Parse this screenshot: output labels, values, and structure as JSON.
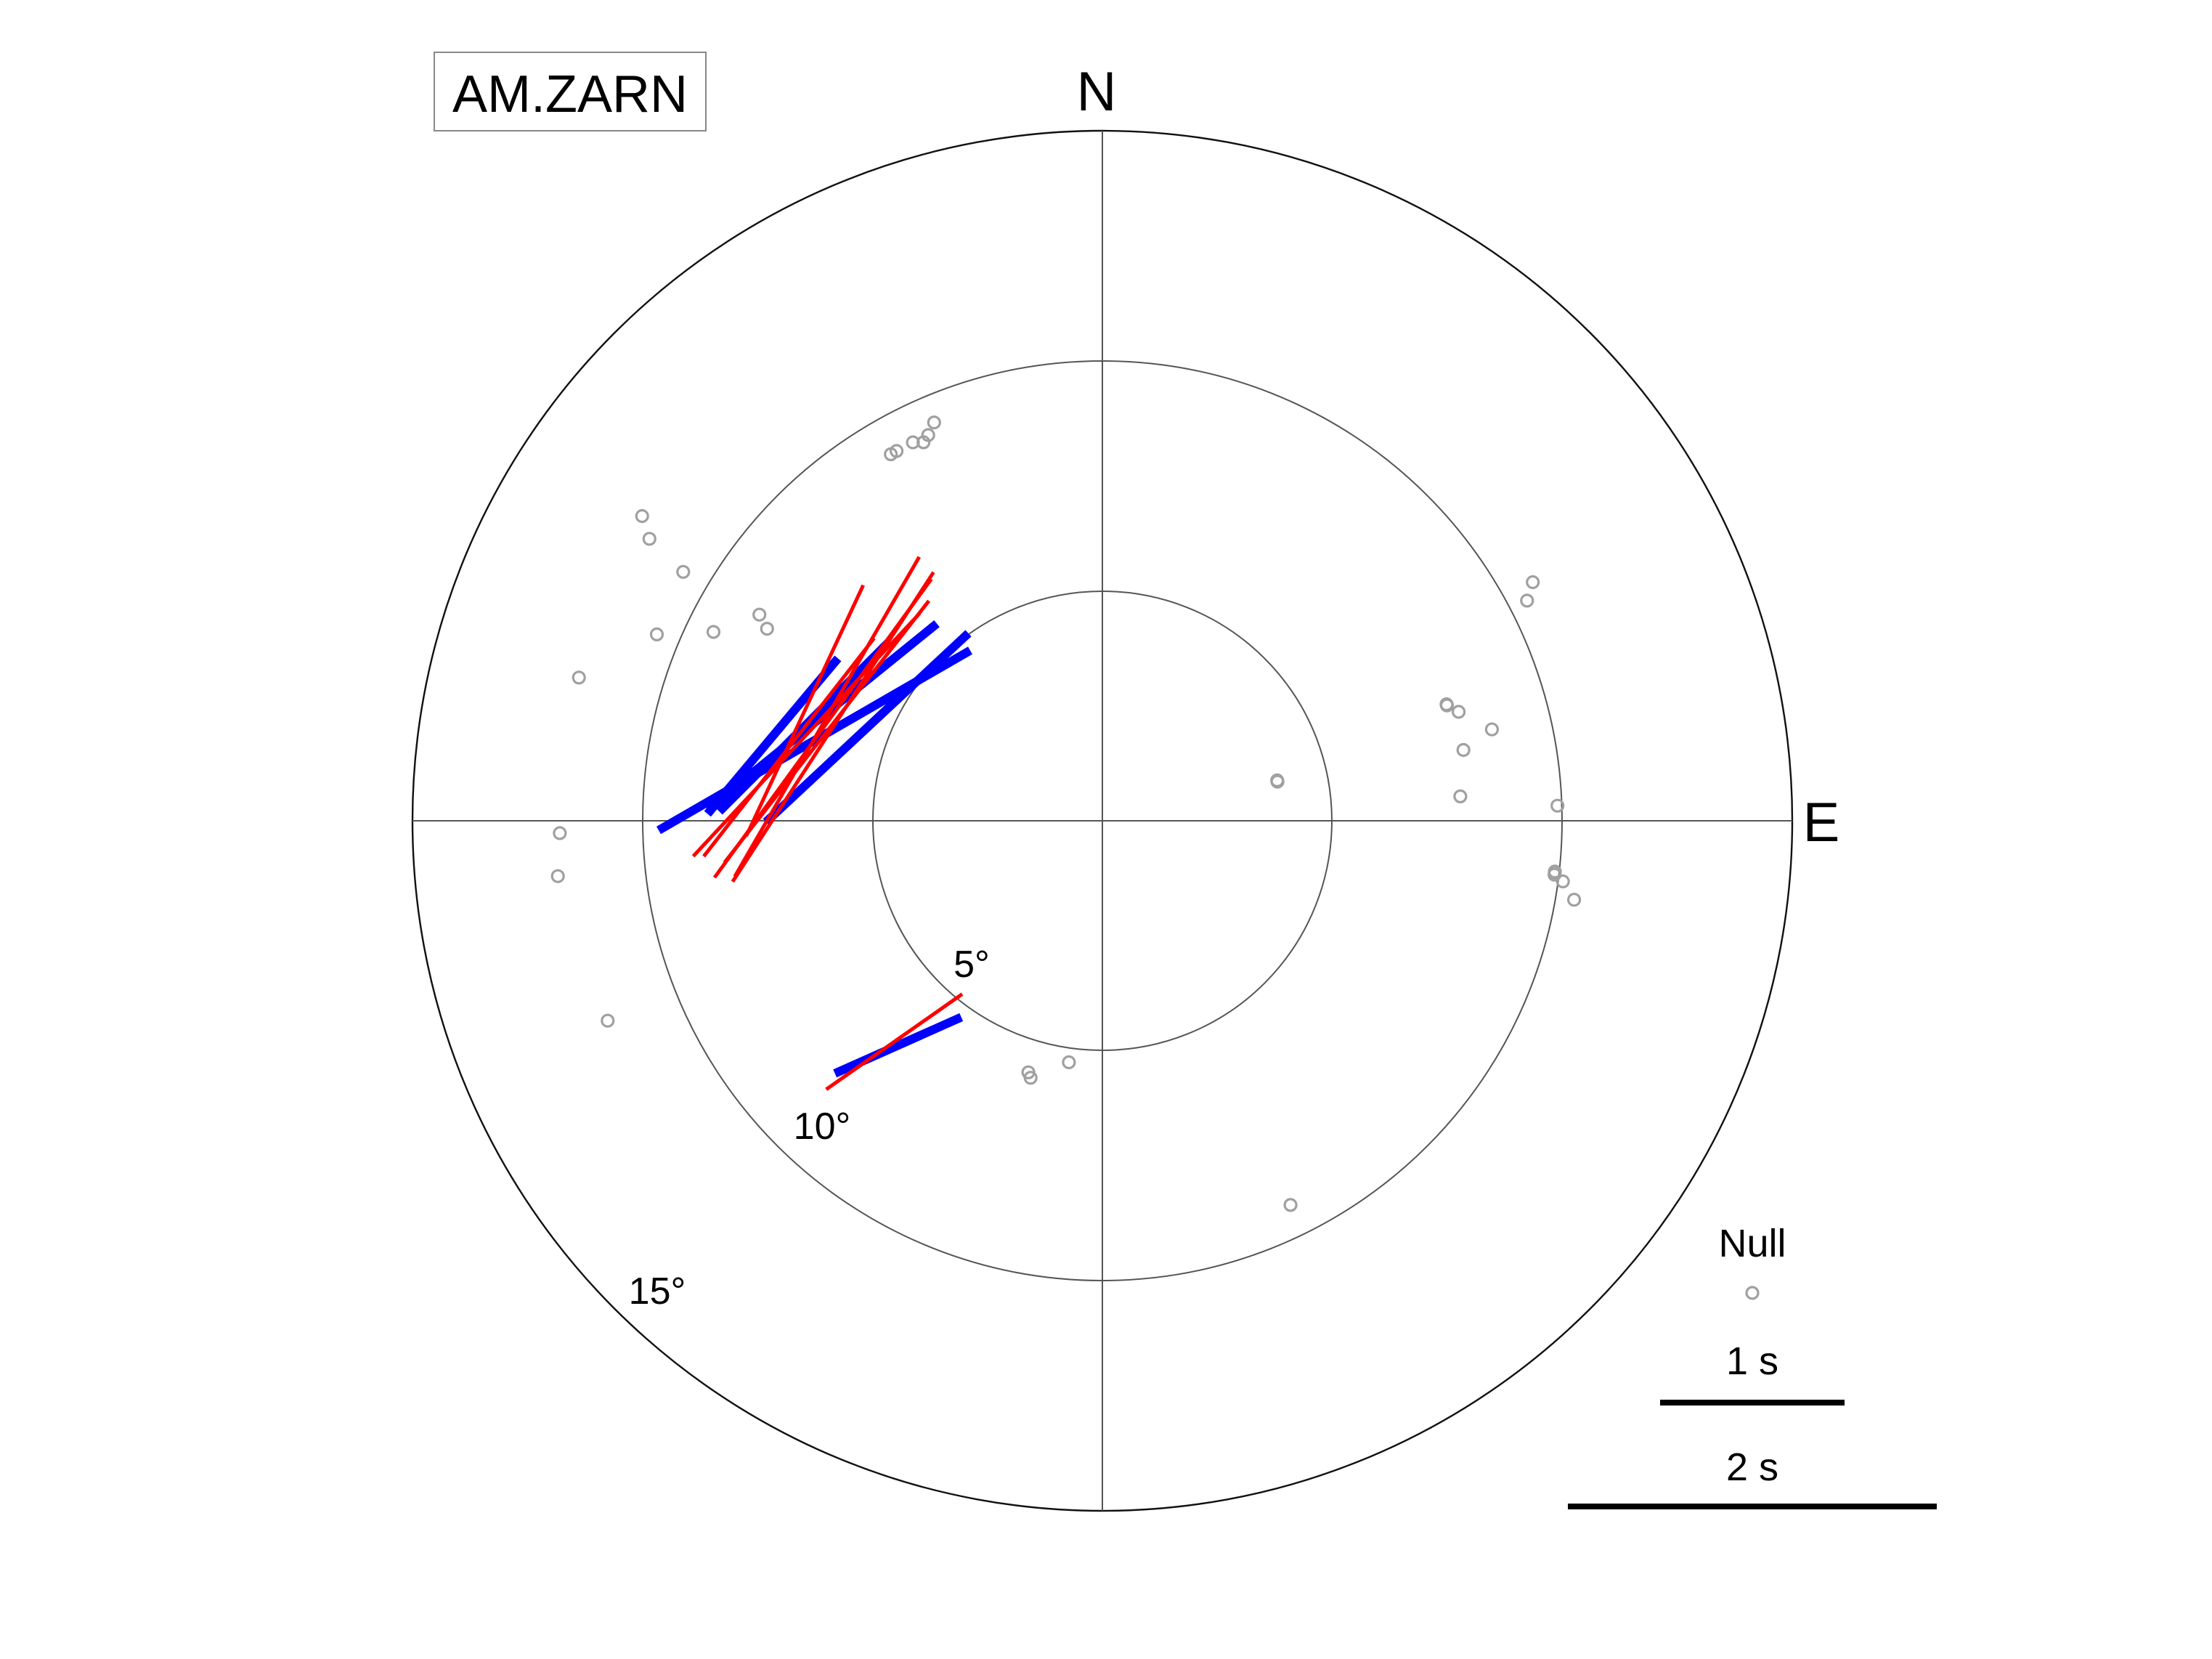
{
  "chart_data": {
    "type": "scatter",
    "projection": "polar",
    "title": "",
    "station": "AM.ZARN",
    "directions": {
      "north": "N",
      "east": "E"
    },
    "rings": [
      {
        "value": 5,
        "label": "5°"
      },
      {
        "value": 10,
        "label": "10°"
      },
      {
        "value": 15,
        "label": "15°"
      }
    ],
    "rmax": 15,
    "legend": {
      "position": "bottom-right",
      "null_label": "Null",
      "scale_bars": [
        {
          "seconds": 1,
          "label": "1 s"
        },
        {
          "seconds": 2,
          "label": "2 s"
        }
      ]
    },
    "colors": {
      "splits_blue": "#0000ff",
      "splits_red": "#ff0000",
      "null": "#a0a0a0",
      "rings": "#555555"
    },
    "nulls": [
      {
        "baz": 301.9,
        "inc": 11.6
      },
      {
        "baz": 303.5,
        "inc": 12.0
      },
      {
        "baz": 292.7,
        "inc": 10.5
      },
      {
        "baz": 300.7,
        "inc": 10.6
      },
      {
        "baz": 330.0,
        "inc": 9.2
      },
      {
        "baz": 330.9,
        "inc": 9.2
      },
      {
        "baz": 333.4,
        "inc": 9.2
      },
      {
        "baz": 334.7,
        "inc": 9.1
      },
      {
        "baz": 335.7,
        "inc": 9.2
      },
      {
        "baz": 337.1,
        "inc": 9.4
      },
      {
        "baz": 295.9,
        "inc": 9.4
      },
      {
        "baz": 301.0,
        "inc": 8.7
      },
      {
        "baz": 299.8,
        "inc": 8.4
      },
      {
        "baz": 285.3,
        "inc": 11.8
      },
      {
        "baz": 268.7,
        "inc": 11.8
      },
      {
        "baz": 264.2,
        "inc": 11.9
      },
      {
        "baz": 248.0,
        "inc": 11.6
      },
      {
        "baz": 187.9,
        "inc": 5.3
      },
      {
        "baz": 196.4,
        "inc": 5.7
      },
      {
        "baz": 195.6,
        "inc": 5.8
      },
      {
        "baz": 153.9,
        "inc": 9.3
      },
      {
        "baz": 77.0,
        "inc": 3.9
      },
      {
        "baz": 77.4,
        "inc": 3.9
      },
      {
        "baz": 71.5,
        "inc": 7.9
      },
      {
        "baz": 71.3,
        "inc": 7.9
      },
      {
        "baz": 73.0,
        "inc": 8.1
      },
      {
        "baz": 78.9,
        "inc": 8.0
      },
      {
        "baz": 76.8,
        "inc": 8.7
      },
      {
        "baz": 86.1,
        "inc": 7.8
      },
      {
        "baz": 88.1,
        "inc": 9.9
      },
      {
        "baz": 96.5,
        "inc": 9.9
      },
      {
        "baz": 96.8,
        "inc": 9.9
      },
      {
        "baz": 97.5,
        "inc": 10.1
      },
      {
        "baz": 99.5,
        "inc": 10.4
      },
      {
        "baz": 61.0,
        "inc": 10.7
      },
      {
        "baz": 62.6,
        "inc": 10.4
      },
      {
        "baz": 96.4,
        "inc": 9.9
      }
    ],
    "splits": [
      {
        "baz": 285.6,
        "inc": 6.5,
        "phi": 60,
        "dt": 1.95,
        "color": "blue"
      },
      {
        "baz": 291.6,
        "inc": 5.5,
        "phi": 47,
        "dt": 1.5,
        "color": "blue"
      },
      {
        "baz": 290.4,
        "inc": 6.5,
        "phi": 51,
        "dt": 1.6,
        "color": "blue"
      },
      {
        "baz": 287.5,
        "inc": 6.8,
        "phi": 45,
        "dt": 1.3,
        "color": "blue"
      },
      {
        "baz": 284.4,
        "inc": 7.4,
        "phi": 40,
        "dt": 1.1,
        "color": "blue"
      },
      {
        "baz": 290.7,
        "inc": 6.4,
        "phi": 30,
        "dt": 2.0,
        "color": "red"
      },
      {
        "baz": 288.3,
        "inc": 6.4,
        "phi": 36,
        "dt": 2.0,
        "color": "red"
      },
      {
        "baz": 289.2,
        "inc": 6.2,
        "phi": 33,
        "dt": 2.0,
        "color": "red"
      },
      {
        "baz": 287.9,
        "inc": 6.3,
        "phi": 38,
        "dt": 1.8,
        "color": "red"
      },
      {
        "baz": 286.2,
        "inc": 6.7,
        "phi": 43,
        "dt": 1.8,
        "color": "red"
      },
      {
        "baz": 283.2,
        "inc": 7.0,
        "phi": 38,
        "dt": 1.5,
        "color": "red"
      },
      {
        "baz": 290.3,
        "inc": 6.9,
        "phi": 25,
        "dt": 1.5,
        "color": "red"
      },
      {
        "baz": 222.3,
        "inc": 6.6,
        "phi": 66,
        "dt": 0.75,
        "color": "blue"
      },
      {
        "baz": 223.3,
        "inc": 6.6,
        "phi": 55,
        "dt": 0.9,
        "color": "red"
      }
    ]
  }
}
